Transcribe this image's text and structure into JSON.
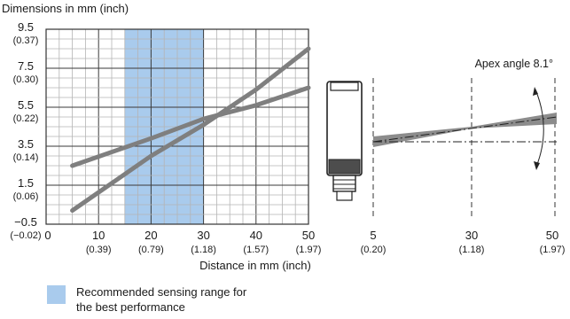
{
  "chart_data": [
    {
      "type": "line",
      "title": "Dimensions in mm (inch)",
      "xlabel": "Distance in mm (inch)",
      "ylabel": "Dimensions in mm (inch)",
      "xlim": [
        0,
        50
      ],
      "ylim": [
        -0.5,
        9.5
      ],
      "grid": true,
      "x_ticks": [
        {
          "value": 0,
          "label": "0",
          "sub": ""
        },
        {
          "value": 10,
          "label": "10",
          "sub": "(0.39)"
        },
        {
          "value": 20,
          "label": "20",
          "sub": "(0.79)"
        },
        {
          "value": 30,
          "label": "30",
          "sub": "(1.18)"
        },
        {
          "value": 40,
          "label": "40",
          "sub": "(1.57)"
        },
        {
          "value": 50,
          "label": "50",
          "sub": "(1.97)"
        }
      ],
      "y_ticks": [
        {
          "value": 9.5,
          "label": "9.5",
          "sub": "(0.37)"
        },
        {
          "value": 7.5,
          "label": "7.5",
          "sub": "(0.30)"
        },
        {
          "value": 5.5,
          "label": "5.5",
          "sub": "(0.22)"
        },
        {
          "value": 3.5,
          "label": "3.5",
          "sub": "(0.14)"
        },
        {
          "value": 1.5,
          "label": "1.5",
          "sub": "(0.06)"
        },
        {
          "value": -0.5,
          "label": "−0.5",
          "sub": "(−0.02)"
        }
      ],
      "highlight_range": {
        "x": [
          15,
          30
        ],
        "color": "#a9cbed"
      },
      "series": [
        {
          "x": [
            5,
            20,
            30,
            40,
            50
          ],
          "y": [
            2.5,
            3.9,
            4.9,
            5.6,
            6.5
          ],
          "color": "#7f7f7f"
        },
        {
          "x": [
            5,
            20,
            30,
            40,
            50
          ],
          "y": [
            0.2,
            3.0,
            4.6,
            6.4,
            8.5
          ],
          "color": "#7f7f7f"
        }
      ]
    },
    {
      "type": "diagram",
      "annotation": "Apex angle 8.1°",
      "x_ticks": [
        {
          "value": 5,
          "label": "5",
          "sub": "(0.20)"
        },
        {
          "value": 30,
          "label": "30",
          "sub": "(1.18)"
        },
        {
          "value": 50,
          "label": "50",
          "sub": "(1.97)"
        }
      ]
    }
  ],
  "legend": {
    "label": "Recommended sensing range for the best performance",
    "swatch_color": "#a9cbed"
  }
}
